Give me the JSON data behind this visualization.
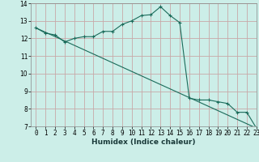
{
  "xlabel": "Humidex (Indice chaleur)",
  "background_color": "#cceee8",
  "grid_color": "#c8a8a8",
  "line_color": "#1a6b5a",
  "xlim": [
    -0.5,
    23
  ],
  "ylim": [
    7,
    14
  ],
  "xticks": [
    0,
    1,
    2,
    3,
    4,
    5,
    6,
    7,
    8,
    9,
    10,
    11,
    12,
    13,
    14,
    15,
    16,
    17,
    18,
    19,
    20,
    21,
    22,
    23
  ],
  "yticks": [
    7,
    8,
    9,
    10,
    11,
    12,
    13,
    14
  ],
  "curve1_x": [
    0,
    1,
    2,
    3,
    4,
    5,
    6,
    7,
    8,
    9,
    10,
    11,
    12,
    13,
    14,
    15,
    16,
    17,
    18,
    19,
    20,
    21,
    22,
    23
  ],
  "curve1_y": [
    12.6,
    12.3,
    12.2,
    11.8,
    12.0,
    12.1,
    12.1,
    12.4,
    12.4,
    12.8,
    13.0,
    13.3,
    13.35,
    13.8,
    13.3,
    12.9,
    8.6,
    8.5,
    8.5,
    8.4,
    8.3,
    7.8,
    7.8,
    6.9
  ],
  "curve2_x": [
    0,
    23
  ],
  "curve2_y": [
    12.6,
    6.9
  ],
  "tick_fontsize": 5.5,
  "xlabel_fontsize": 6.5
}
